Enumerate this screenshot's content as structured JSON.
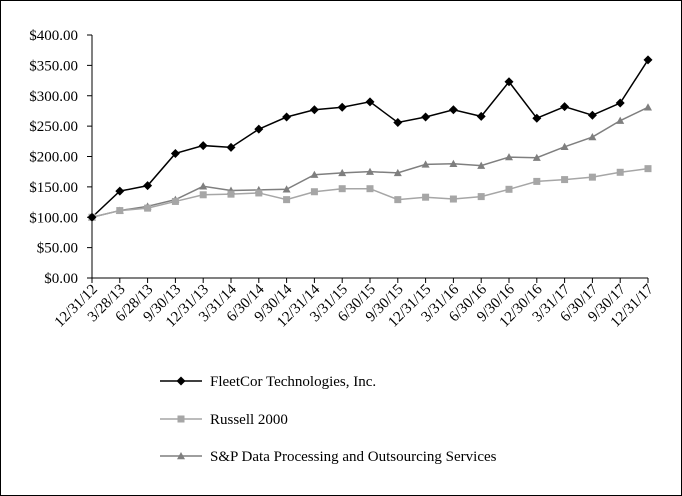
{
  "chart_data": {
    "type": "line",
    "title": "",
    "xlabel": "",
    "ylabel": "",
    "ylim": [
      0,
      400
    ],
    "yticks": [
      "$0.00",
      "$50.00",
      "$100.00",
      "$150.00",
      "$200.00",
      "$250.00",
      "$300.00",
      "$350.00",
      "$400.00"
    ],
    "categories": [
      "12/31/12",
      "3/28/13",
      "6/28/13",
      "9/30/13",
      "12/31/13",
      "3/31/14",
      "6/30/14",
      "9/30/14",
      "12/31/14",
      "3/31/15",
      "6/30/15",
      "9/30/15",
      "12/31/15",
      "3/31/16",
      "6/30/16",
      "9/30/16",
      "12/30/16",
      "3/31/17",
      "6/30/17",
      "9/30/17",
      "12/31/17"
    ],
    "grid": false,
    "legend_position": "bottom",
    "series": [
      {
        "name": "FleetCor Technologies, Inc.",
        "color": "#000000",
        "marker": "diamond",
        "values": [
          100,
          143,
          152,
          205,
          218,
          215,
          245,
          265,
          277,
          281,
          290,
          256,
          265,
          277,
          266,
          323,
          263,
          282,
          268,
          288,
          359
        ]
      },
      {
        "name": "Russell 2000",
        "color": "#a6a6a6",
        "marker": "square",
        "values": [
          100,
          111,
          115,
          126,
          137,
          138,
          140,
          129,
          142,
          147,
          147,
          129,
          133,
          130,
          134,
          146,
          159,
          162,
          166,
          174,
          180
        ]
      },
      {
        "name": "S&P Data Processing and Outsourcing Services",
        "color": "#7f7f7f",
        "marker": "triangle",
        "values": [
          100,
          111,
          118,
          129,
          151,
          144,
          145,
          146,
          170,
          173,
          175,
          173,
          187,
          188,
          185,
          199,
          198,
          216,
          232,
          259,
          281
        ]
      }
    ]
  }
}
